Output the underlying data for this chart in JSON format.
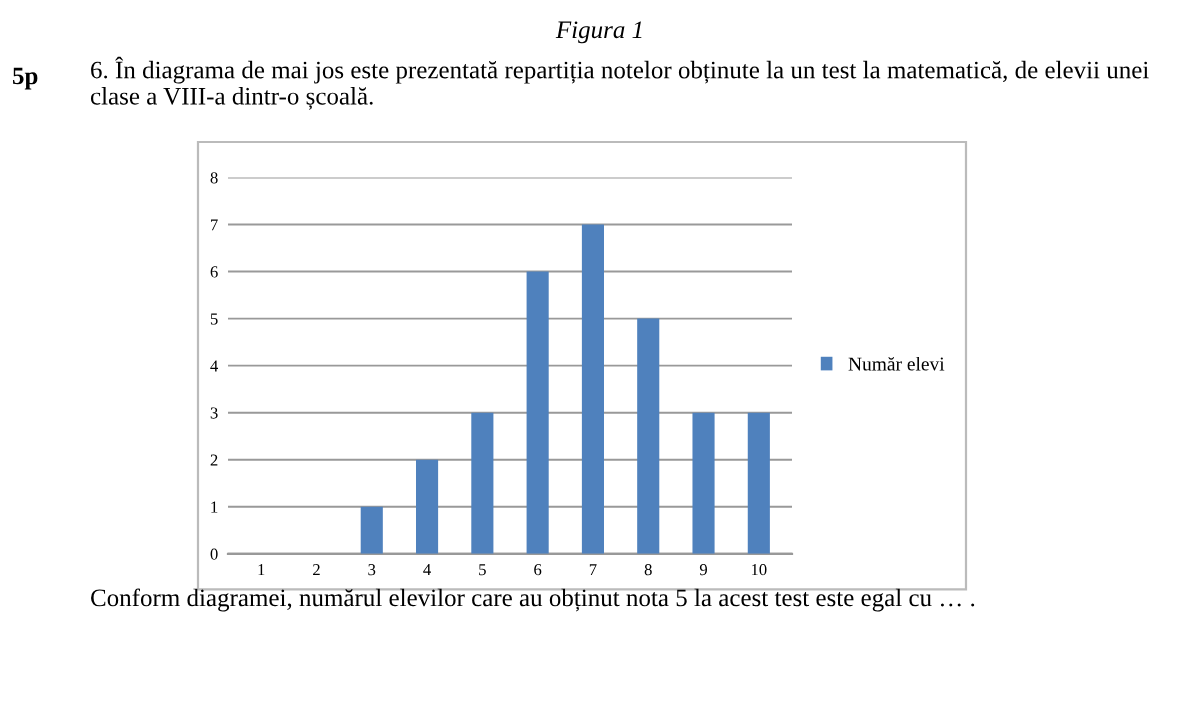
{
  "chart_data": {
    "type": "bar",
    "title": "Figura 1",
    "annotations": [
      "5p",
      "6. În diagrama de mai jos este prezentată repartiția notelor obținute la un test la matematică, de elevii unei clase a VIII-a dintr-o școală.",
      "Conform diagramei, numărul elevilor care au obținut nota 5 la acest test este egal cu … ."
    ],
    "categories": [
      "1",
      "2",
      "3",
      "4",
      "5",
      "6",
      "7",
      "8",
      "9",
      "10"
    ],
    "series": [
      {
        "name": "Număr elevi",
        "color": "#4f81bd",
        "values": [
          0,
          0,
          1,
          2,
          3,
          6,
          7,
          5,
          3,
          3
        ]
      }
    ],
    "ylim": [
      0,
      8
    ],
    "yticks": [
      0,
      1,
      2,
      3,
      4,
      5,
      6,
      7,
      8
    ],
    "grid": "y",
    "legend": "right"
  }
}
